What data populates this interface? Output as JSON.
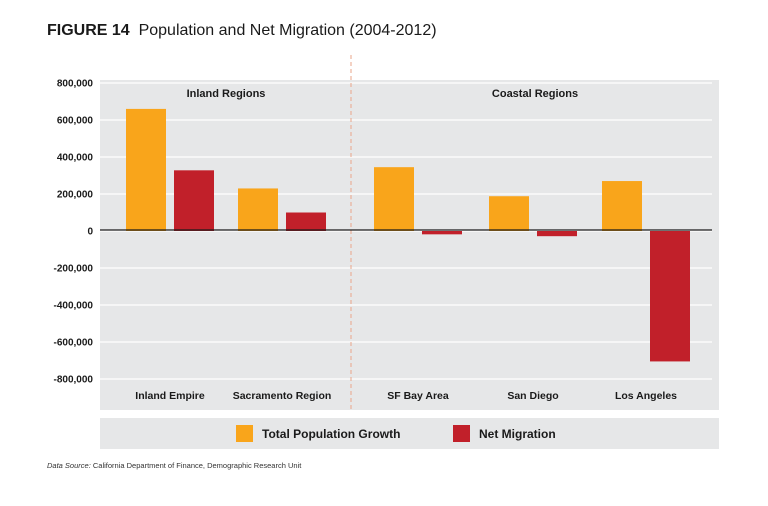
{
  "figure": {
    "number": "FIGURE 14",
    "title": "Population and Net Migration (2004-2012)"
  },
  "source": {
    "lead": "Data Source:",
    "text": "California Department of Finance, Demographic Research Unit"
  },
  "colors": {
    "total_population_growth": "#F9A51B",
    "net_migration": "#C1202A",
    "panel": "#E6E7E8",
    "divider": "#E9A58A"
  },
  "chart_data": {
    "type": "bar",
    "groups": [
      {
        "label": "Inland Regions",
        "categories": [
          "Inland Empire",
          "Sacramento Region"
        ]
      },
      {
        "label": "Coastal Regions",
        "categories": [
          "SF Bay Area",
          "San Diego",
          "Los Angeles"
        ]
      }
    ],
    "categories": [
      "Inland Empire",
      "Sacramento Region",
      "SF Bay Area",
      "San Diego",
      "Los Angeles"
    ],
    "series": [
      {
        "name": "Total Population Growth",
        "values": [
          660000,
          230000,
          345000,
          188000,
          270000
        ]
      },
      {
        "name": "Net Migration",
        "values": [
          328000,
          100000,
          -18000,
          -28000,
          -705000
        ]
      }
    ],
    "ylim": [
      -800000,
      800000
    ],
    "yticks": [
      "800,000",
      "600,000",
      "400,000",
      "200,000",
      "0",
      "-200,000",
      "-400,000",
      "-600,000",
      "-800,000"
    ],
    "grid": true,
    "legend_position": "bottom"
  }
}
